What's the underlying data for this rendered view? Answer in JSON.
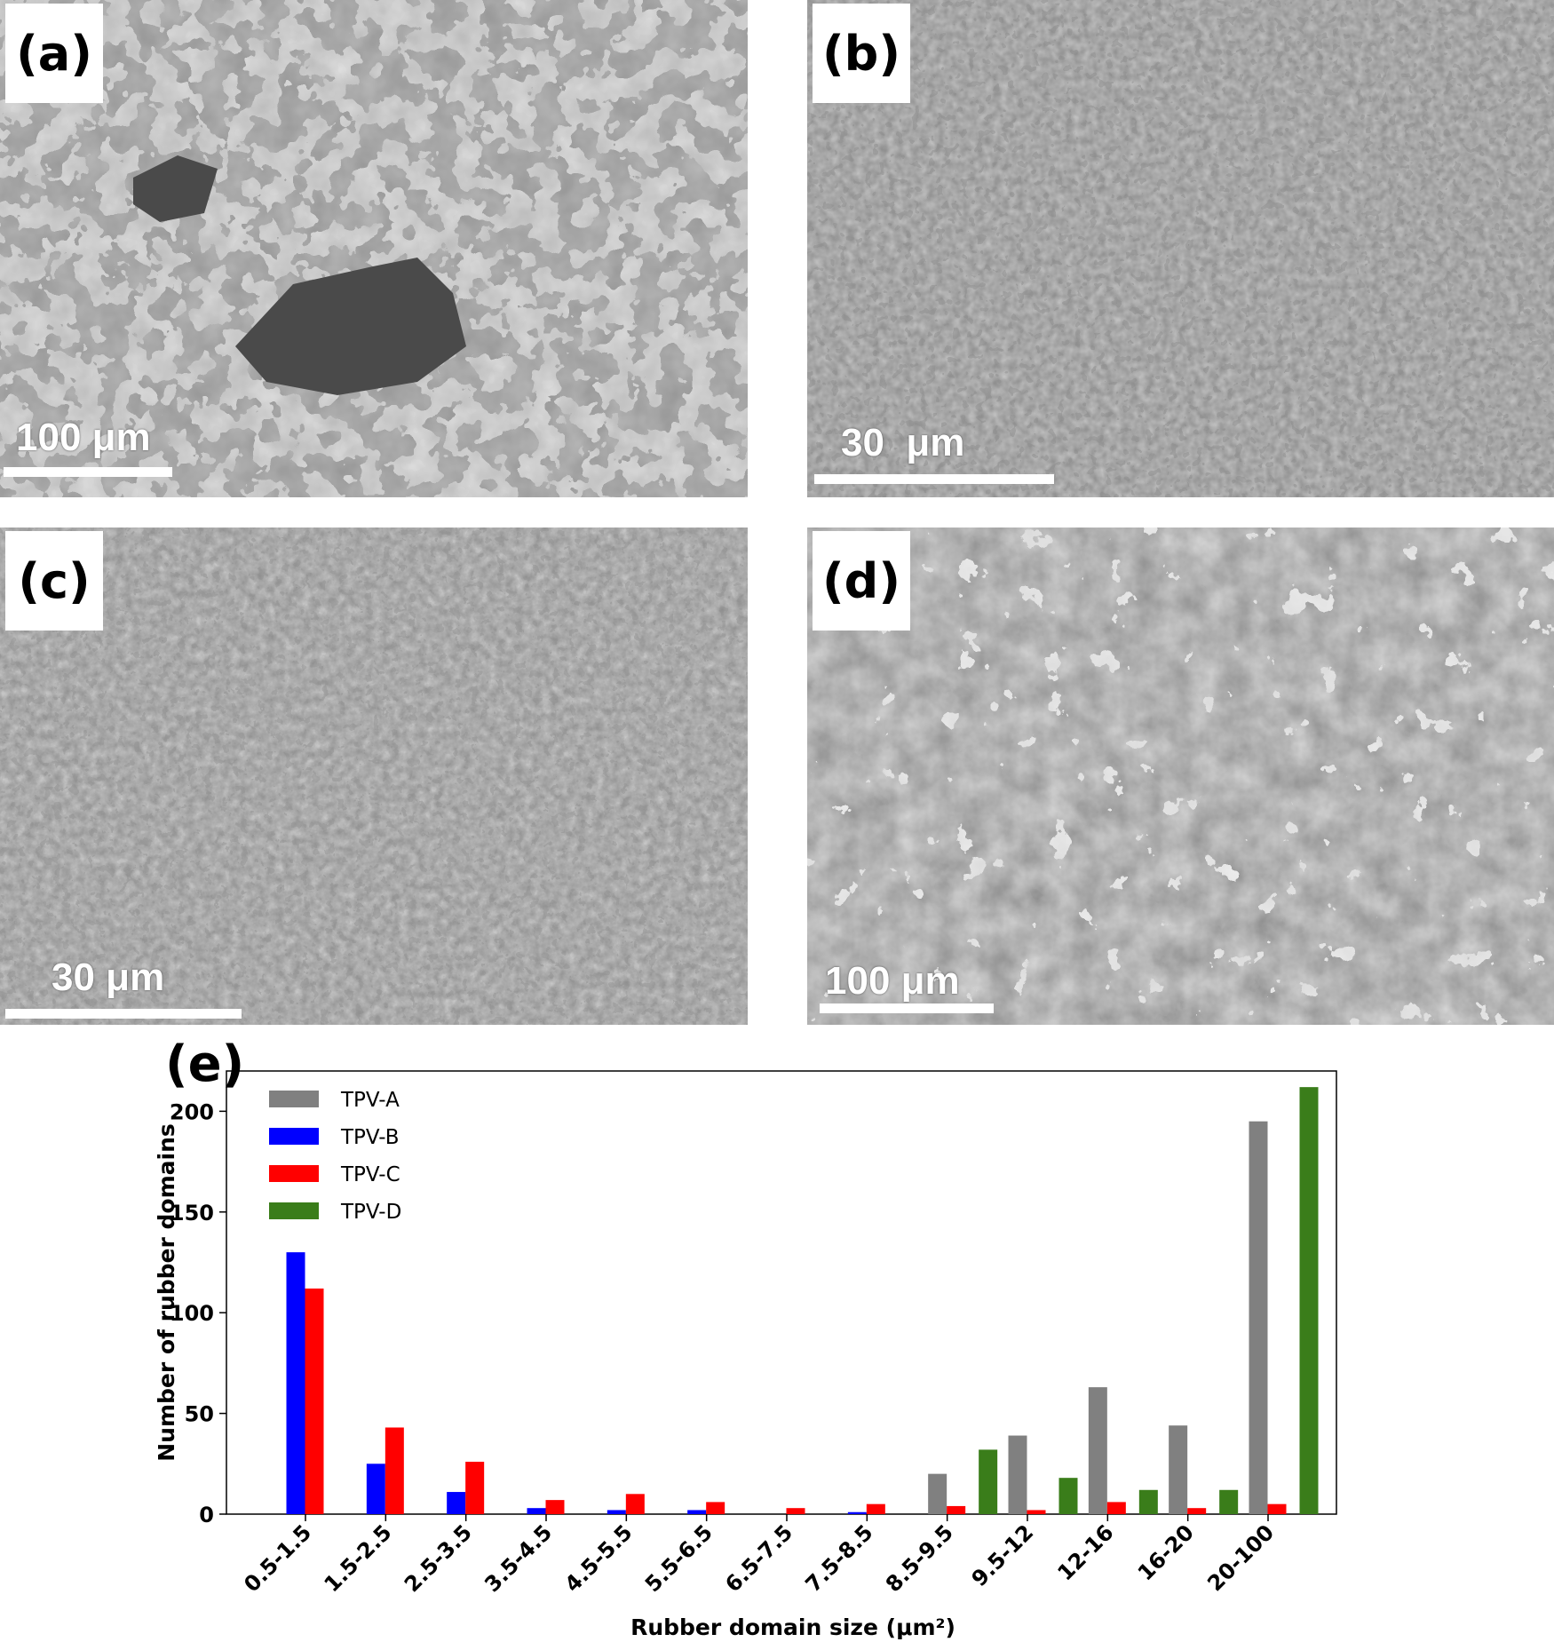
{
  "panels": [
    {
      "id": "a",
      "label": "(a)",
      "scale": "100 μm",
      "tone": "coarse-light"
    },
    {
      "id": "b",
      "label": "(b)",
      "scale": "30  μm",
      "tone": "fine-medium"
    },
    {
      "id": "c",
      "label": "(c)",
      "scale": "30 μm",
      "tone": "fine-medium"
    },
    {
      "id": "d",
      "label": "(d)",
      "scale": "100 μm",
      "tone": "coarse-bright"
    }
  ],
  "panel_e_label": "(e)",
  "chart_data": {
    "type": "bar",
    "title": "",
    "xlabel": "Rubber domain size (μm²)",
    "ylabel": "Number of rubber domains",
    "ylim": [
      0,
      220
    ],
    "yticks": [
      0,
      50,
      100,
      150,
      200
    ],
    "grid": false,
    "legend_position": "top-left",
    "categories": [
      "0.5-1.5",
      "1.5-2.5",
      "2.5-3.5",
      "3.5-4.5",
      "4.5-5.5",
      "5.5-6.5",
      "6.5-7.5",
      "7.5-8.5",
      "8.5-9.5",
      "9.5-12",
      "12-16",
      "16-20",
      "20-100"
    ],
    "series": [
      {
        "name": "TPV-A",
        "color": "#808080",
        "values": [
          0,
          0,
          0,
          0,
          0,
          0,
          0,
          0,
          20,
          39,
          63,
          44,
          195
        ]
      },
      {
        "name": "TPV-B",
        "color": "#0000ff",
        "values": [
          130,
          25,
          11,
          3,
          2,
          2,
          0,
          1,
          0,
          0,
          0,
          0,
          0
        ]
      },
      {
        "name": "TPV-C",
        "color": "#ff0000",
        "values": [
          112,
          43,
          26,
          7,
          10,
          6,
          3,
          5,
          4,
          2,
          6,
          3,
          5
        ]
      },
      {
        "name": "TPV-D",
        "color": "#3a7d1a",
        "values": [
          0,
          0,
          0,
          0,
          0,
          0,
          0,
          0,
          32,
          18,
          12,
          12,
          212
        ]
      }
    ]
  }
}
